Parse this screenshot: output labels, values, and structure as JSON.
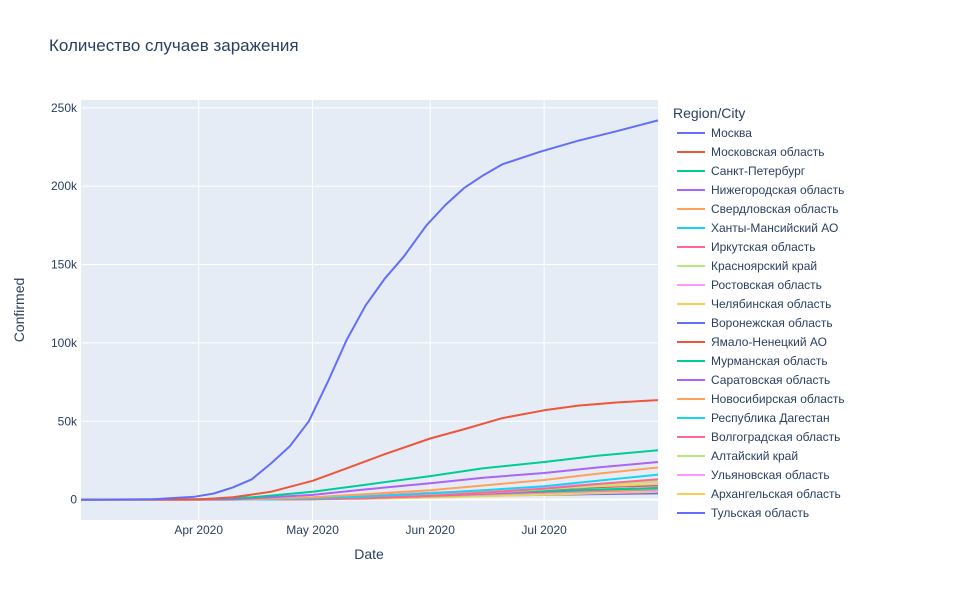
{
  "chart_data": {
    "type": "line",
    "title": "Количество случаев заражения",
    "xlabel": "Date",
    "ylabel": "Confirmed",
    "legend_title": "Region/City",
    "x_range": [
      "2020-03-01",
      "2020-07-31"
    ],
    "ylim": [
      -13000,
      255000
    ],
    "x_ticks": [
      {
        "date": "2020-04-01",
        "label": "Apr 2020"
      },
      {
        "date": "2020-05-01",
        "label": "May 2020"
      },
      {
        "date": "2020-06-01",
        "label": "Jun 2020"
      },
      {
        "date": "2020-07-01",
        "label": "Jul 2020"
      }
    ],
    "y_ticks": [
      {
        "value": 0,
        "label": "0"
      },
      {
        "value": 50000,
        "label": "50k"
      },
      {
        "value": 100000,
        "label": "100k"
      },
      {
        "value": 150000,
        "label": "150k"
      },
      {
        "value": 200000,
        "label": "200k"
      },
      {
        "value": 250000,
        "label": "250k"
      }
    ],
    "grid": true,
    "legend_position": "right",
    "series": [
      {
        "name": "Москва",
        "color": "#636efa",
        "points": [
          [
            "2020-03-01",
            0
          ],
          [
            "2020-03-20",
            200
          ],
          [
            "2020-03-31",
            1880
          ],
          [
            "2020-04-05",
            3900
          ],
          [
            "2020-04-10",
            7800
          ],
          [
            "2020-04-15",
            13000
          ],
          [
            "2020-04-20",
            23000
          ],
          [
            "2020-04-25",
            34000
          ],
          [
            "2020-04-30",
            50000
          ],
          [
            "2020-05-05",
            75000
          ],
          [
            "2020-05-10",
            102000
          ],
          [
            "2020-05-15",
            124000
          ],
          [
            "2020-05-20",
            141000
          ],
          [
            "2020-05-25",
            155000
          ],
          [
            "2020-05-31",
            175000
          ],
          [
            "2020-06-05",
            188000
          ],
          [
            "2020-06-10",
            199000
          ],
          [
            "2020-06-15",
            207000
          ],
          [
            "2020-06-20",
            214000
          ],
          [
            "2020-06-30",
            222000
          ],
          [
            "2020-07-10",
            229000
          ],
          [
            "2020-07-20",
            235000
          ],
          [
            "2020-07-31",
            242000
          ]
        ]
      },
      {
        "name": "Московская область",
        "color": "#EF553B",
        "points": [
          [
            "2020-03-01",
            0
          ],
          [
            "2020-04-01",
            100
          ],
          [
            "2020-04-10",
            1500
          ],
          [
            "2020-04-20",
            5000
          ],
          [
            "2020-05-01",
            12000
          ],
          [
            "2020-05-10",
            20000
          ],
          [
            "2020-05-20",
            29000
          ],
          [
            "2020-06-01",
            39000
          ],
          [
            "2020-06-10",
            45000
          ],
          [
            "2020-06-20",
            52000
          ],
          [
            "2020-07-01",
            57000
          ],
          [
            "2020-07-10",
            60000
          ],
          [
            "2020-07-20",
            62000
          ],
          [
            "2020-07-31",
            63500
          ]
        ]
      },
      {
        "name": "Санкт-Петербург",
        "color": "#00cc96",
        "points": [
          [
            "2020-03-01",
            0
          ],
          [
            "2020-04-01",
            300
          ],
          [
            "2020-04-15",
            1500
          ],
          [
            "2020-05-01",
            5000
          ],
          [
            "2020-05-15",
            9500
          ],
          [
            "2020-06-01",
            15000
          ],
          [
            "2020-06-15",
            20000
          ],
          [
            "2020-07-01",
            24000
          ],
          [
            "2020-07-15",
            28000
          ],
          [
            "2020-07-31",
            31500
          ]
        ]
      },
      {
        "name": "Нижегородская область",
        "color": "#ab63fa",
        "points": [
          [
            "2020-03-01",
            0
          ],
          [
            "2020-04-10",
            200
          ],
          [
            "2020-05-01",
            3000
          ],
          [
            "2020-05-15",
            6500
          ],
          [
            "2020-06-01",
            10500
          ],
          [
            "2020-06-15",
            14000
          ],
          [
            "2020-07-01",
            17000
          ],
          [
            "2020-07-15",
            20500
          ],
          [
            "2020-07-31",
            24000
          ]
        ]
      },
      {
        "name": "Свердловская область",
        "color": "#FFA15A",
        "points": [
          [
            "2020-03-01",
            0
          ],
          [
            "2020-04-15",
            200
          ],
          [
            "2020-05-01",
            1500
          ],
          [
            "2020-05-15",
            3500
          ],
          [
            "2020-06-01",
            6000
          ],
          [
            "2020-06-15",
            9000
          ],
          [
            "2020-07-01",
            12500
          ],
          [
            "2020-07-15",
            16500
          ],
          [
            "2020-07-31",
            20500
          ]
        ]
      },
      {
        "name": "Ханты-Мансийский АО",
        "color": "#19d3f3",
        "points": [
          [
            "2020-03-01",
            0
          ],
          [
            "2020-04-20",
            100
          ],
          [
            "2020-05-10",
            1500
          ],
          [
            "2020-06-01",
            4000
          ],
          [
            "2020-06-15",
            6000
          ],
          [
            "2020-07-01",
            8500
          ],
          [
            "2020-07-15",
            12000
          ],
          [
            "2020-07-31",
            16000
          ]
        ]
      },
      {
        "name": "Иркутская область",
        "color": "#FF6692",
        "points": [
          [
            "2020-03-01",
            0
          ],
          [
            "2020-04-25",
            100
          ],
          [
            "2020-05-15",
            1000
          ],
          [
            "2020-06-01",
            2500
          ],
          [
            "2020-06-15",
            4500
          ],
          [
            "2020-07-01",
            7000
          ],
          [
            "2020-07-15",
            10000
          ],
          [
            "2020-07-31",
            13000
          ]
        ]
      },
      {
        "name": "Красноярский край",
        "color": "#B6E880",
        "points": [
          [
            "2020-03-01",
            0
          ],
          [
            "2020-04-25",
            100
          ],
          [
            "2020-05-15",
            1200
          ],
          [
            "2020-06-01",
            2800
          ],
          [
            "2020-06-15",
            4300
          ],
          [
            "2020-07-01",
            6500
          ],
          [
            "2020-07-15",
            9000
          ],
          [
            "2020-07-31",
            12000
          ]
        ]
      },
      {
        "name": "Ростовская область",
        "color": "#FF97FF",
        "points": [
          [
            "2020-03-01",
            0
          ],
          [
            "2020-04-20",
            200
          ],
          [
            "2020-05-10",
            1800
          ],
          [
            "2020-06-01",
            4200
          ],
          [
            "2020-06-15",
            6000
          ],
          [
            "2020-07-01",
            8000
          ],
          [
            "2020-07-15",
            10000
          ],
          [
            "2020-07-31",
            11500
          ]
        ]
      },
      {
        "name": "Челябинская область",
        "color": "#FECB52",
        "points": [
          [
            "2020-03-01",
            0
          ],
          [
            "2020-04-25",
            150
          ],
          [
            "2020-05-15",
            1500
          ],
          [
            "2020-06-01",
            3200
          ],
          [
            "2020-06-15",
            5000
          ],
          [
            "2020-07-01",
            6800
          ],
          [
            "2020-07-15",
            8500
          ],
          [
            "2020-07-31",
            10000
          ]
        ]
      },
      {
        "name": "Воронежская область",
        "color": "#636efa",
        "points": [
          [
            "2020-03-01",
            0
          ],
          [
            "2020-04-25",
            150
          ],
          [
            "2020-05-15",
            1500
          ],
          [
            "2020-06-01",
            3500
          ],
          [
            "2020-06-15",
            5200
          ],
          [
            "2020-07-01",
            7000
          ],
          [
            "2020-07-15",
            8300
          ],
          [
            "2020-07-31",
            9500
          ]
        ]
      },
      {
        "name": "Ямало-Ненецкий АО",
        "color": "#EF553B",
        "points": [
          [
            "2020-03-01",
            0
          ],
          [
            "2020-04-25",
            200
          ],
          [
            "2020-05-15",
            2500
          ],
          [
            "2020-06-01",
            4300
          ],
          [
            "2020-06-15",
            5600
          ],
          [
            "2020-07-01",
            6800
          ],
          [
            "2020-07-15",
            8000
          ],
          [
            "2020-07-31",
            9000
          ]
        ]
      },
      {
        "name": "Мурманская область",
        "color": "#00cc96",
        "points": [
          [
            "2020-03-01",
            0
          ],
          [
            "2020-04-25",
            200
          ],
          [
            "2020-05-15",
            2000
          ],
          [
            "2020-06-01",
            3700
          ],
          [
            "2020-06-15",
            4800
          ],
          [
            "2020-07-01",
            5700
          ],
          [
            "2020-07-15",
            6500
          ],
          [
            "2020-07-31",
            7200
          ]
        ]
      },
      {
        "name": "Саратовская область",
        "color": "#ab63fa",
        "points": [
          [
            "2020-03-01",
            0
          ],
          [
            "2020-04-25",
            100
          ],
          [
            "2020-05-15",
            1000
          ],
          [
            "2020-06-01",
            2500
          ],
          [
            "2020-06-15",
            3800
          ],
          [
            "2020-07-01",
            5000
          ],
          [
            "2020-07-15",
            6200
          ],
          [
            "2020-07-31",
            7500
          ]
        ]
      },
      {
        "name": "Новосибирская область",
        "color": "#FFA15A",
        "points": [
          [
            "2020-03-01",
            0
          ],
          [
            "2020-04-25",
            100
          ],
          [
            "2020-05-15",
            800
          ],
          [
            "2020-06-01",
            2000
          ],
          [
            "2020-06-15",
            3200
          ],
          [
            "2020-07-01",
            4500
          ],
          [
            "2020-07-15",
            5800
          ],
          [
            "2020-07-31",
            7000
          ]
        ]
      },
      {
        "name": "Республика Дагестан",
        "color": "#19d3f3",
        "points": [
          [
            "2020-03-01",
            0
          ],
          [
            "2020-04-25",
            200
          ],
          [
            "2020-05-15",
            2200
          ],
          [
            "2020-06-01",
            4000
          ],
          [
            "2020-06-15",
            5000
          ],
          [
            "2020-07-01",
            5800
          ],
          [
            "2020-07-15",
            6300
          ],
          [
            "2020-07-31",
            6800
          ]
        ]
      },
      {
        "name": "Волгоградская область",
        "color": "#FF6692",
        "points": [
          [
            "2020-03-01",
            0
          ],
          [
            "2020-04-25",
            100
          ],
          [
            "2020-05-15",
            900
          ],
          [
            "2020-06-01",
            2200
          ],
          [
            "2020-06-15",
            3400
          ],
          [
            "2020-07-01",
            4500
          ],
          [
            "2020-07-15",
            5500
          ],
          [
            "2020-07-31",
            6500
          ]
        ]
      },
      {
        "name": "Алтайский край",
        "color": "#B6E880",
        "points": [
          [
            "2020-03-01",
            0
          ],
          [
            "2020-04-25",
            80
          ],
          [
            "2020-05-15",
            600
          ],
          [
            "2020-06-01",
            1500
          ],
          [
            "2020-06-15",
            2600
          ],
          [
            "2020-07-01",
            3800
          ],
          [
            "2020-07-15",
            5000
          ],
          [
            "2020-07-31",
            6200
          ]
        ]
      },
      {
        "name": "Ульяновская область",
        "color": "#FF97FF",
        "points": [
          [
            "2020-03-01",
            0
          ],
          [
            "2020-04-25",
            100
          ],
          [
            "2020-05-15",
            900
          ],
          [
            "2020-06-01",
            2000
          ],
          [
            "2020-06-15",
            3000
          ],
          [
            "2020-07-01",
            3900
          ],
          [
            "2020-07-15",
            4700
          ],
          [
            "2020-07-31",
            5500
          ]
        ]
      },
      {
        "name": "Архангельская область",
        "color": "#FECB52",
        "points": [
          [
            "2020-03-01",
            0
          ],
          [
            "2020-04-25",
            50
          ],
          [
            "2020-05-15",
            500
          ],
          [
            "2020-06-01",
            1300
          ],
          [
            "2020-06-15",
            2200
          ],
          [
            "2020-07-01",
            3100
          ],
          [
            "2020-07-15",
            4100
          ],
          [
            "2020-07-31",
            5000
          ]
        ]
      },
      {
        "name": "Тульская область",
        "color": "#636efa",
        "points": [
          [
            "2020-03-01",
            0
          ],
          [
            "2020-04-25",
            100
          ],
          [
            "2020-05-15",
            900
          ],
          [
            "2020-06-01",
            1800
          ],
          [
            "2020-06-15",
            2500
          ],
          [
            "2020-07-01",
            3000
          ],
          [
            "2020-07-15",
            3500
          ],
          [
            "2020-07-31",
            4000
          ]
        ]
      }
    ]
  }
}
